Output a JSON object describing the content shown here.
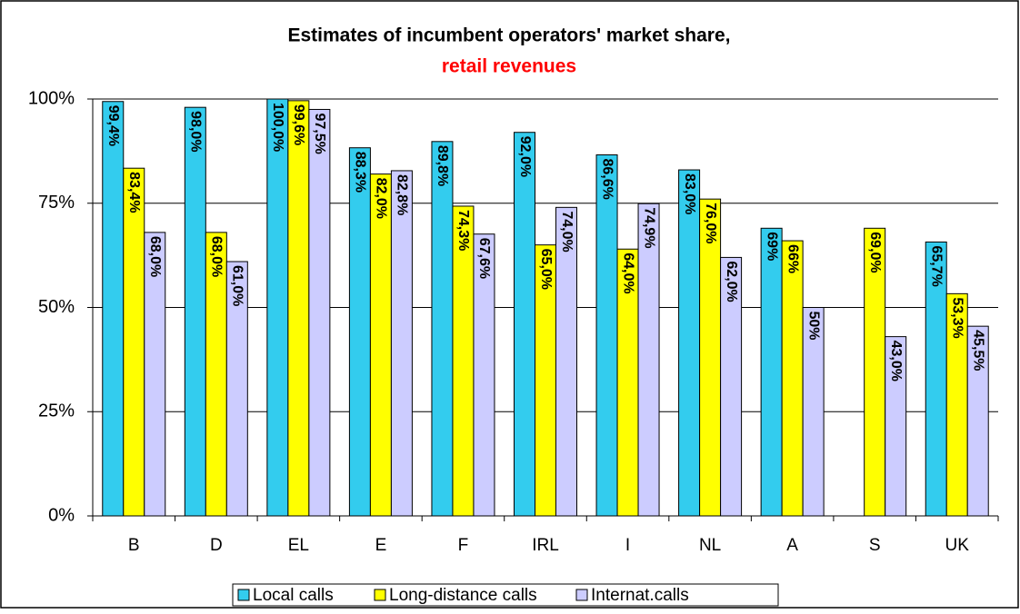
{
  "chart_data": {
    "type": "bar",
    "title": "Estimates of incumbent operators' market share,",
    "subtitle": "retail revenues",
    "categories": [
      "B",
      "D",
      "EL",
      "E",
      "F",
      "IRL",
      "I",
      "NL",
      "A",
      "S",
      "UK"
    ],
    "series": [
      {
        "name": "Local calls",
        "color": "#33ccee",
        "values": [
          99.4,
          98.0,
          100.0,
          88.3,
          89.8,
          92.0,
          86.6,
          83.0,
          69,
          null,
          65.7
        ],
        "value_labels": [
          "99,4%",
          "98,0%",
          "100,0%",
          "88,3%",
          "89,8%",
          "92,0%",
          "86,6%",
          "83,0%",
          "69%",
          null,
          "65,7%"
        ]
      },
      {
        "name": "Long-distance calls",
        "color": "#ffff00",
        "values": [
          83.4,
          68.0,
          99.6,
          82.0,
          74.3,
          65.0,
          64.0,
          76.0,
          66,
          69.0,
          53.3
        ],
        "value_labels": [
          "83,4%",
          "68,0%",
          "99,6%",
          "82,0%",
          "74,3%",
          "65,0%",
          "64,0%",
          "76,0%",
          "66%",
          "69,0%",
          "53,3%"
        ]
      },
      {
        "name": "Internat.calls",
        "color": "#ccccff",
        "values": [
          68.0,
          61.0,
          97.5,
          82.8,
          67.6,
          74.0,
          74.9,
          62.0,
          50,
          43.0,
          45.5
        ],
        "value_labels": [
          "68,0%",
          "61,0%",
          "97,5%",
          "82,8%",
          "67,6%",
          "74,0%",
          "74,9%",
          "62,0%",
          "50%",
          "43,0%",
          "45,5%"
        ]
      }
    ],
    "ylim": [
      0,
      100
    ],
    "yticks": [
      {
        "value": 0,
        "label": "0%"
      },
      {
        "value": 25,
        "label": "25%"
      },
      {
        "value": 50,
        "label": "50%"
      },
      {
        "value": 75,
        "label": "75%"
      },
      {
        "value": 100,
        "label": "100%"
      }
    ],
    "grid": true,
    "legend": "bottom"
  }
}
